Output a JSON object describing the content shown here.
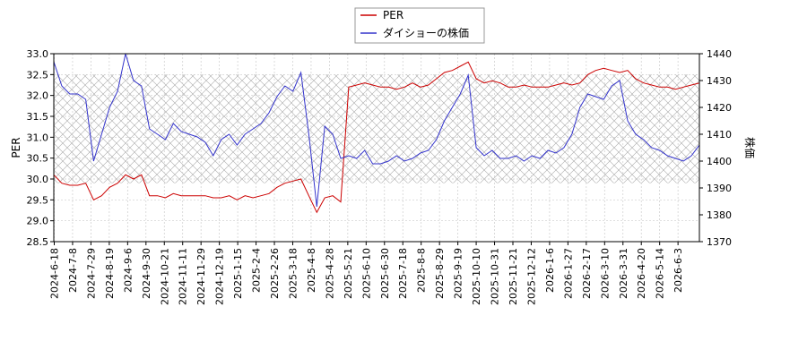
{
  "chart_data": {
    "type": "line",
    "legend": {
      "placement": "top-center",
      "entries": [
        "PER",
        "ダイショーの株価"
      ]
    },
    "grid": true,
    "shaded_band": {
      "axis": "left",
      "from": 29.9,
      "to": 32.5,
      "pattern": "crosshatch"
    },
    "xlabel": "",
    "x_ticks": [
      "2024-6-18",
      "2024-7-8",
      "2024-7-29",
      "2024-8-19",
      "2024-9-6",
      "2024-9-30",
      "2024-10-21",
      "2024-11-11",
      "2024-11-29",
      "2024-12-19",
      "2025-1-15",
      "2025-2-4",
      "2025-2-26",
      "2025-3-18",
      "2025-4-8",
      "2025-4-28",
      "2025-5-21",
      "2025-6-10",
      "2025-6-30",
      "2025-7-18",
      "2025-8-8",
      "2025-8-29",
      "2025-9-19",
      "2025-10-10",
      "2025-10-31",
      "2025-11-21",
      "2025-12-12",
      "2026-1-6",
      "2026-1-27",
      "2026-2-17",
      "2026-3-10",
      "2026-3-31",
      "2026-4-20",
      "2026-5-14",
      "2026-6-3"
    ],
    "left_axis": {
      "label": "PER",
      "ylim": [
        28.5,
        33.0
      ],
      "ticks": [
        "28.5",
        "29.0",
        "29.5",
        "30.0",
        "30.5",
        "31.0",
        "31.5",
        "32.0",
        "32.5",
        "33.0"
      ]
    },
    "right_axis": {
      "label": "株価",
      "ylim": [
        1370,
        1440
      ],
      "ticks": [
        "1370",
        "1380",
        "1390",
        "1400",
        "1410",
        "1420",
        "1430",
        "1440"
      ]
    },
    "series": [
      {
        "name": "PER",
        "axis": "left",
        "color": "#cc0000",
        "points": [
          [
            0,
            30.1
          ],
          [
            1,
            29.9
          ],
          [
            2,
            29.85
          ],
          [
            3,
            29.85
          ],
          [
            4,
            29.9
          ],
          [
            5,
            29.5
          ],
          [
            6,
            29.6
          ],
          [
            7,
            29.8
          ],
          [
            8,
            29.9
          ],
          [
            9,
            30.1
          ],
          [
            10,
            30.0
          ],
          [
            11,
            30.1
          ],
          [
            12,
            29.6
          ],
          [
            13,
            29.6
          ],
          [
            14,
            29.55
          ],
          [
            15,
            29.65
          ],
          [
            16,
            29.6
          ],
          [
            17,
            29.6
          ],
          [
            18,
            29.6
          ],
          [
            19,
            29.6
          ],
          [
            20,
            29.55
          ],
          [
            21,
            29.55
          ],
          [
            22,
            29.6
          ],
          [
            23,
            29.5
          ],
          [
            24,
            29.6
          ],
          [
            25,
            29.55
          ],
          [
            26,
            29.6
          ],
          [
            27,
            29.65
          ],
          [
            28,
            29.8
          ],
          [
            29,
            29.9
          ],
          [
            30,
            29.95
          ],
          [
            31,
            30.0
          ],
          [
            32,
            29.6
          ],
          [
            33,
            29.2
          ],
          [
            34,
            29.55
          ],
          [
            35,
            29.6
          ],
          [
            36,
            29.45
          ],
          [
            37,
            32.2
          ],
          [
            38,
            32.25
          ],
          [
            39,
            32.3
          ],
          [
            40,
            32.25
          ],
          [
            41,
            32.2
          ],
          [
            42,
            32.2
          ],
          [
            43,
            32.15
          ],
          [
            44,
            32.2
          ],
          [
            45,
            32.3
          ],
          [
            46,
            32.2
          ],
          [
            47,
            32.25
          ],
          [
            48,
            32.4
          ],
          [
            49,
            32.55
          ],
          [
            50,
            32.6
          ],
          [
            51,
            32.7
          ],
          [
            52,
            32.8
          ],
          [
            53,
            32.4
          ],
          [
            54,
            32.3
          ],
          [
            55,
            32.35
          ],
          [
            56,
            32.3
          ],
          [
            57,
            32.2
          ],
          [
            58,
            32.2
          ],
          [
            59,
            32.25
          ],
          [
            60,
            32.2
          ],
          [
            61,
            32.2
          ],
          [
            62,
            32.2
          ],
          [
            63,
            32.25
          ],
          [
            64,
            32.3
          ],
          [
            65,
            32.25
          ],
          [
            66,
            32.3
          ],
          [
            67,
            32.5
          ],
          [
            68,
            32.6
          ],
          [
            69,
            32.65
          ],
          [
            70,
            32.6
          ],
          [
            71,
            32.55
          ],
          [
            72,
            32.6
          ],
          [
            73,
            32.4
          ],
          [
            74,
            32.3
          ],
          [
            75,
            32.25
          ],
          [
            76,
            32.2
          ],
          [
            77,
            32.2
          ],
          [
            78,
            32.15
          ],
          [
            79,
            32.2
          ],
          [
            80,
            32.25
          ],
          [
            81,
            32.3
          ]
        ]
      },
      {
        "name": "ダイショーの株価",
        "axis": "right",
        "color": "#3333cc",
        "points": [
          [
            0,
            1437
          ],
          [
            1,
            1428
          ],
          [
            2,
            1425
          ],
          [
            3,
            1425
          ],
          [
            4,
            1423
          ],
          [
            5,
            1400
          ],
          [
            6,
            1410
          ],
          [
            7,
            1420
          ],
          [
            8,
            1426
          ],
          [
            9,
            1440
          ],
          [
            10,
            1430
          ],
          [
            11,
            1428
          ],
          [
            12,
            1412
          ],
          [
            13,
            1410
          ],
          [
            14,
            1408
          ],
          [
            15,
            1414
          ],
          [
            16,
            1411
          ],
          [
            17,
            1410
          ],
          [
            18,
            1409
          ],
          [
            19,
            1407
          ],
          [
            20,
            1402
          ],
          [
            21,
            1408
          ],
          [
            22,
            1410
          ],
          [
            23,
            1406
          ],
          [
            24,
            1410
          ],
          [
            25,
            1412
          ],
          [
            26,
            1414
          ],
          [
            27,
            1418
          ],
          [
            28,
            1424
          ],
          [
            29,
            1428
          ],
          [
            30,
            1426
          ],
          [
            31,
            1433
          ],
          [
            32,
            1410
          ],
          [
            33,
            1383
          ],
          [
            34,
            1413
          ],
          [
            35,
            1410
          ],
          [
            36,
            1401
          ],
          [
            37,
            1402
          ],
          [
            38,
            1401
          ],
          [
            39,
            1404
          ],
          [
            40,
            1399
          ],
          [
            41,
            1399
          ],
          [
            42,
            1400
          ],
          [
            43,
            1402
          ],
          [
            44,
            1400
          ],
          [
            45,
            1401
          ],
          [
            46,
            1403
          ],
          [
            47,
            1404
          ],
          [
            48,
            1408
          ],
          [
            49,
            1415
          ],
          [
            50,
            1420
          ],
          [
            51,
            1425
          ],
          [
            52,
            1432
          ],
          [
            53,
            1405
          ],
          [
            54,
            1402
          ],
          [
            55,
            1404
          ],
          [
            56,
            1401
          ],
          [
            57,
            1401
          ],
          [
            58,
            1402
          ],
          [
            59,
            1400
          ],
          [
            60,
            1402
          ],
          [
            61,
            1401
          ],
          [
            62,
            1404
          ],
          [
            63,
            1403
          ],
          [
            64,
            1405
          ],
          [
            65,
            1410
          ],
          [
            66,
            1420
          ],
          [
            67,
            1425
          ],
          [
            68,
            1424
          ],
          [
            69,
            1423
          ],
          [
            70,
            1428
          ],
          [
            71,
            1430
          ],
          [
            72,
            1415
          ],
          [
            73,
            1410
          ],
          [
            74,
            1408
          ],
          [
            75,
            1405
          ],
          [
            76,
            1404
          ],
          [
            77,
            1402
          ],
          [
            78,
            1401
          ],
          [
            79,
            1400
          ],
          [
            80,
            1402
          ],
          [
            81,
            1406
          ]
        ]
      }
    ]
  }
}
